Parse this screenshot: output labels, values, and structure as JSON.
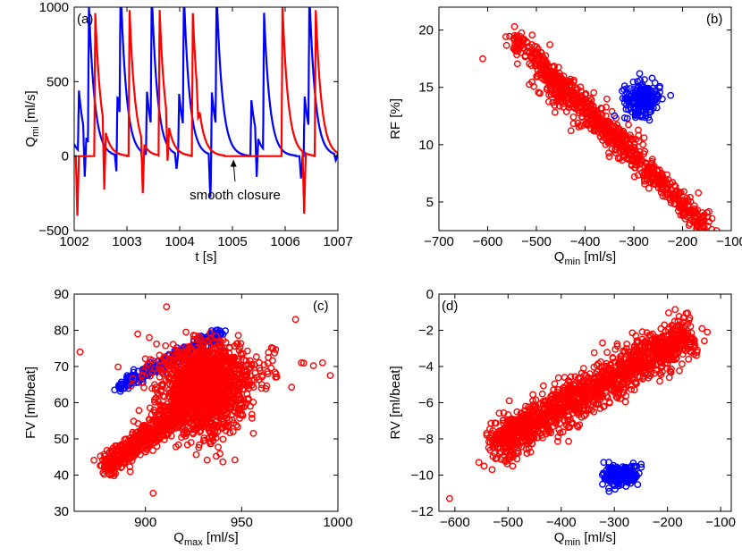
{
  "figure": {
    "panels": [
      "(a)",
      "(b)",
      "(c)",
      "(d)"
    ]
  },
  "colors": {
    "red": "#ff0000",
    "blue": "#0000ff",
    "axis": "#000000"
  },
  "chart_data": [
    {
      "id": "a",
      "tag": "(a)",
      "type": "line",
      "xlabel": "t [s]",
      "ylabel": {
        "main": "Q",
        "sub": "mi",
        "unit": " [ml/s]"
      },
      "xlim": [
        1002,
        1007
      ],
      "ylim": [
        -500,
        1000
      ],
      "xticks": [
        1002,
        1003,
        1004,
        1005,
        1006,
        1007
      ],
      "yticks": [
        -500,
        0,
        500,
        1000
      ],
      "annotation": {
        "text": "smooth closure",
        "arrow_from": [
          1005.05,
          -170
        ],
        "arrow_to": [
          1005.02,
          -5
        ]
      },
      "series": [
        {
          "name": "blue",
          "color": "#0000ff",
          "ejections": [
            {
              "t": 1002.0,
              "peak": 80
            },
            {
              "t": 1002.09,
              "peak": 405
            },
            {
              "t": 1002.28,
              "peak": 930
            },
            {
              "t": 1002.82,
              "peak": 420
            },
            {
              "t": 1002.88,
              "peak": 910
            },
            {
              "t": 1003.38,
              "peak": 420
            },
            {
              "t": 1003.47,
              "peak": 920
            },
            {
              "t": 1003.99,
              "peak": 410
            },
            {
              "t": 1004.08,
              "peak": 915
            },
            {
              "t": 1004.61,
              "peak": 420
            },
            {
              "t": 1004.7,
              "peak": 920
            },
            {
              "t": 1005.36,
              "peak": 375
            },
            {
              "t": 1005.6,
              "peak": 920
            },
            {
              "t": 1006.37,
              "peak": 400
            },
            {
              "t": 1006.46,
              "peak": 920
            }
          ],
          "closures": [
            {
              "t": 1002.2,
              "depth": -300
            },
            {
              "t": 1002.8,
              "depth": -110
            },
            {
              "t": 1003.3,
              "depth": -110
            },
            {
              "t": 1003.94,
              "depth": -100
            },
            {
              "t": 1004.58,
              "depth": -290
            },
            {
              "t": 1005.46,
              "depth": -290
            },
            {
              "t": 1006.3,
              "depth": -150
            },
            {
              "t": 1006.96,
              "depth": -40
            }
          ]
        },
        {
          "name": "red",
          "color": "#ff0000",
          "ejections": [
            {
              "t": 1002.4,
              "peak": 960
            },
            {
              "t": 1003.05,
              "peak": 980
            },
            {
              "t": 1003.62,
              "peak": 975
            },
            {
              "t": 1004.25,
              "peak": 960
            },
            {
              "t": 1005.95,
              "peak": 1000
            },
            {
              "t": 1006.58,
              "peak": 980
            }
          ],
          "closures": [
            {
              "t": 1002.06,
              "depth": -400
            },
            {
              "t": 1002.57,
              "depth": -430
            },
            {
              "t": 1003.3,
              "depth": -350
            },
            {
              "t": 1003.77,
              "depth": -280
            },
            {
              "t": 1004.35,
              "depth": -130
            },
            {
              "t": 1006.36,
              "depth": -410
            }
          ]
        }
      ]
    },
    {
      "id": "b",
      "tag": "(b)",
      "type": "scatter",
      "xlabel": {
        "main": "Q",
        "sub": "min",
        "unit": " [ml/s]"
      },
      "ylabel": "RF [%]",
      "xlim": [
        -700,
        -100
      ],
      "ylim": [
        2.5,
        22
      ],
      "xticks": [
        -700,
        -600,
        -500,
        -400,
        -300,
        -200,
        -100
      ],
      "yticks": [
        5,
        10,
        15,
        20
      ],
      "series": [
        {
          "name": "red",
          "color": "#ff0000",
          "clusters": [
            {
              "from": [
                -545,
                19.2
              ],
              "to": [
                -155,
                3.0
              ],
              "count": 700,
              "spread_along": 0.02,
              "spread_across": 0.45
            },
            {
              "from": [
                -500,
                16.0
              ],
              "to": [
                -300,
                9.5
              ],
              "count": 200,
              "spread_along": 0.05,
              "spread_across": 0.8
            }
          ],
          "outliers": [
            [
              -610,
              17.5
            ],
            [
              -545,
              20.3
            ],
            [
              -130,
              2.5
            ],
            [
              -140,
              2.6
            ],
            [
              -540,
              19.5
            ],
            [
              -520,
              19.0
            ],
            [
              -290,
              10.3
            ]
          ]
        },
        {
          "name": "blue",
          "color": "#0000ff",
          "clusters": [
            {
              "center": [
                -282,
                14.0
              ],
              "sx": 18,
              "sy": 0.7,
              "count": 220
            }
          ],
          "outliers": [
            [
              -288,
              16.2
            ],
            [
              -320,
              14.8
            ]
          ]
        }
      ]
    },
    {
      "id": "c",
      "tag": "(c)",
      "type": "scatter",
      "xlabel": {
        "main": "Q",
        "sub": "max",
        "unit": " [ml/s]"
      },
      "ylabel": "FV [ml/beat]",
      "xlim": [
        863,
        1000
      ],
      "ylim": [
        30,
        90
      ],
      "xticks": [
        900,
        950,
        1000
      ],
      "yticks": [
        30,
        40,
        50,
        60,
        70,
        80,
        90
      ],
      "series": [
        {
          "name": "blue",
          "color": "#0000ff",
          "clusters": [
            {
              "from": [
                885,
                64.0
              ],
              "to": [
                940,
                79.5
              ],
              "count": 260,
              "spread_along": 0.02,
              "spread_across": 0.8
            }
          ],
          "outliers": [
            [
              884,
              63.5
            ]
          ]
        },
        {
          "name": "red",
          "color": "#ff0000",
          "clusters": [
            {
              "from": [
                878,
                42
              ],
              "to": [
                920,
                58
              ],
              "count": 500,
              "spread_along": 0.03,
              "spread_across": 1.6
            },
            {
              "center": [
                930,
                63
              ],
              "sx": 10,
              "sy": 5.5,
              "count": 1400
            },
            {
              "center": [
                935,
                69
              ],
              "sx": 16,
              "sy": 3.5,
              "count": 350
            }
          ],
          "outliers": [
            [
              866,
              74
            ],
            [
              911,
              86.5
            ],
            [
              896,
              79
            ],
            [
              902,
              78
            ],
            [
              992,
              71
            ],
            [
              996,
              67.5
            ],
            [
              978,
              83
            ],
            [
              904,
              35
            ],
            [
              893,
              44
            ],
            [
              981,
              71
            ]
          ]
        }
      ]
    },
    {
      "id": "d",
      "tag": "(d)",
      "type": "scatter",
      "xlabel": {
        "main": "Q",
        "sub": "min",
        "unit": " [ml/s]"
      },
      "ylabel": "RV [ml/beat]",
      "xlim": [
        -630,
        -80
      ],
      "ylim": [
        -12,
        0
      ],
      "xticks": [
        -600,
        -500,
        -400,
        -300,
        -200,
        -100
      ],
      "yticks": [
        -12,
        -10,
        -8,
        -6,
        -4,
        -2,
        0
      ],
      "series": [
        {
          "name": "red",
          "color": "#ff0000",
          "clusters": [
            {
              "from": [
                -525,
                -8.4
              ],
              "to": [
                -155,
                -2.1
              ],
              "count": 1400,
              "spread_along": 0.02,
              "spread_across": 0.55
            }
          ],
          "outliers": [
            [
              -610,
              -11.3
            ],
            [
              -555,
              -9.3
            ],
            [
              -530,
              -9.7
            ],
            [
              -545,
              -9.5
            ],
            [
              -135,
              -1.9
            ],
            [
              -125,
              -2.1
            ],
            [
              -490,
              -9.0
            ]
          ]
        },
        {
          "name": "blue",
          "color": "#0000ff",
          "clusters": [
            {
              "center": [
                -287,
                -10.0
              ],
              "sx": 16,
              "sy": 0.28,
              "count": 230
            }
          ],
          "outliers": [
            [
              -310,
              -10.9
            ],
            [
              -320,
              -9.3
            ]
          ]
        }
      ]
    }
  ]
}
